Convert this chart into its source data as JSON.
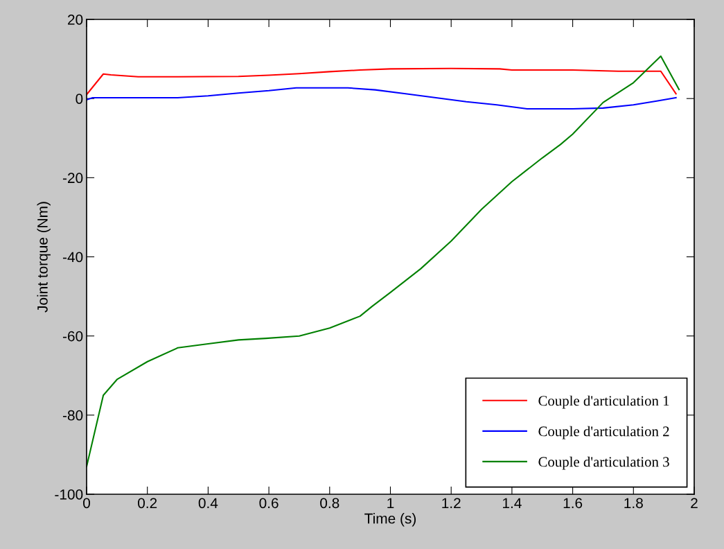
{
  "chart_data": {
    "type": "line",
    "xlabel": "Time (s)",
    "ylabel": "Joint torque (Nm)",
    "xlim": [
      0,
      2
    ],
    "ylim": [
      -100,
      20
    ],
    "xticks": [
      0,
      0.2,
      0.4,
      0.6,
      0.8,
      1,
      1.2,
      1.4,
      1.6,
      1.8,
      2
    ],
    "yticks": [
      -100,
      -80,
      -60,
      -40,
      -20,
      0,
      20
    ],
    "grid": false,
    "legend": "bottom right",
    "line_style": "solid",
    "marker": "none",
    "series": [
      {
        "name": "Couple d'articulation 1",
        "color": "#ff0000",
        "x": [
          0,
          0.055,
          0.08,
          0.17,
          0.3,
          0.5,
          0.6,
          0.7,
          0.8,
          0.9,
          1.0,
          1.2,
          1.36,
          1.4,
          1.6,
          1.75,
          1.89,
          1.94
        ],
        "values": [
          1,
          6.2,
          6.0,
          5.5,
          5.5,
          5.6,
          5.9,
          6.3,
          6.8,
          7.2,
          7.5,
          7.6,
          7.5,
          7.2,
          7.2,
          6.9,
          6.9,
          1.2
        ]
      },
      {
        "name": "Couple d'articulation 2",
        "color": "#0000ff",
        "x": [
          0,
          0.02,
          0.3,
          0.4,
          0.5,
          0.6,
          0.69,
          0.86,
          0.95,
          1.05,
          1.15,
          1.25,
          1.35,
          1.45,
          1.6,
          1.7,
          1.8,
          1.88,
          1.94
        ],
        "values": [
          -0.3,
          0.2,
          0.2,
          0.7,
          1.4,
          2.0,
          2.7,
          2.7,
          2.2,
          1.2,
          0.2,
          -0.8,
          -1.6,
          -2.6,
          -2.6,
          -2.4,
          -1.6,
          -0.6,
          0.2
        ]
      },
      {
        "name": "Couple d'articulation 3",
        "color": "#008000",
        "x": [
          0,
          0.055,
          0.1,
          0.2,
          0.3,
          0.4,
          0.5,
          0.59,
          0.7,
          0.8,
          0.9,
          0.94,
          1.0,
          1.1,
          1.2,
          1.3,
          1.4,
          1.5,
          1.56,
          1.6,
          1.7,
          1.8,
          1.89,
          1.95
        ],
        "values": [
          -93,
          -75,
          -71,
          -66.5,
          -63,
          -62,
          -61,
          -60.6,
          -60,
          -58,
          -55,
          -52.5,
          -49,
          -43,
          -36,
          -28,
          -21,
          -15,
          -11.6,
          -9,
          -1,
          4,
          10.7,
          2.3
        ]
      }
    ]
  }
}
